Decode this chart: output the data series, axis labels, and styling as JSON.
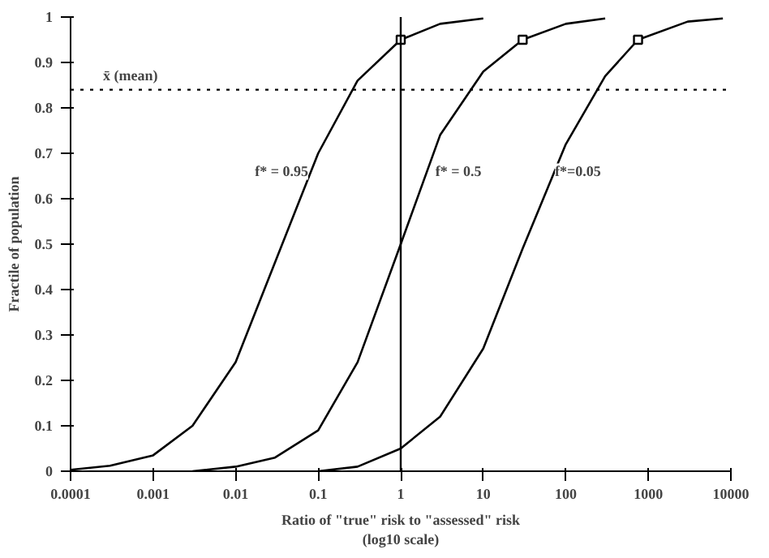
{
  "chart_data": {
    "type": "line",
    "xlabel": "Ratio of \"true\" risk to \"assessed\" risk\n(log10 scale)",
    "ylabel": "Fractile of population",
    "log": "x",
    "grid": false,
    "marker": "none",
    "line_style": "solid",
    "xlim": [
      0.0001,
      10000
    ],
    "ylim": [
      0,
      1
    ],
    "xticks": [
      {
        "value": 0.0001,
        "label": "0.0001"
      },
      {
        "value": 0.001,
        "label": "0.001"
      },
      {
        "value": 0.01,
        "label": "0.01"
      },
      {
        "value": 0.1,
        "label": "0.1"
      },
      1,
      10,
      100,
      1000,
      10000
    ],
    "yticks": [
      0,
      0.1,
      0.2,
      0.3,
      0.4,
      0.5,
      0.6,
      0.7,
      0.8,
      0.9,
      1
    ],
    "series": [
      {
        "color": "#000000",
        "x": [
          0.0001,
          0.0003,
          0.001,
          0.003,
          0.01,
          0.03,
          0.1,
          0.3,
          1,
          3,
          10
        ],
        "values": [
          0.003,
          0.012,
          0.035,
          0.1,
          0.24,
          0.46,
          0.7,
          0.86,
          0.95,
          0.985,
          0.997
        ]
      },
      {
        "color": "#000000",
        "x": [
          0.003,
          0.01,
          0.03,
          0.1,
          0.3,
          1,
          3,
          10,
          30,
          100,
          300
        ],
        "values": [
          0.0,
          0.01,
          0.03,
          0.09,
          0.24,
          0.5,
          0.74,
          0.88,
          0.95,
          0.985,
          0.997
        ]
      },
      {
        "color": "#000000",
        "x": [
          0.1,
          0.3,
          1,
          3,
          10,
          30,
          100,
          300,
          750,
          3000,
          8000
        ],
        "values": [
          0.0,
          0.01,
          0.05,
          0.12,
          0.27,
          0.49,
          0.72,
          0.87,
          0.95,
          0.99,
          0.997
        ]
      },
      {
        "type": "scatter",
        "marker": "square",
        "color": "#000000",
        "x": [
          1,
          30,
          750
        ],
        "values": [
          0.95,
          0.95,
          0.95
        ]
      }
    ],
    "ref_lines": [
      {
        "axis": "y",
        "value": 0.84,
        "label": "x̄ (mean)",
        "line_style": "dotted",
        "color": "#000000"
      },
      {
        "axis": "x",
        "value": 1,
        "color": "#000000",
        "line_style": "solid"
      }
    ],
    "annotations": [
      {
        "text": "f* = 0.95",
        "x": 0.036,
        "y": 0.66
      },
      {
        "text": "f* = 0.5",
        "x": 5,
        "y": 0.66
      },
      {
        "text": "f*=0.05",
        "x": 140,
        "y": 0.66
      }
    ]
  }
}
